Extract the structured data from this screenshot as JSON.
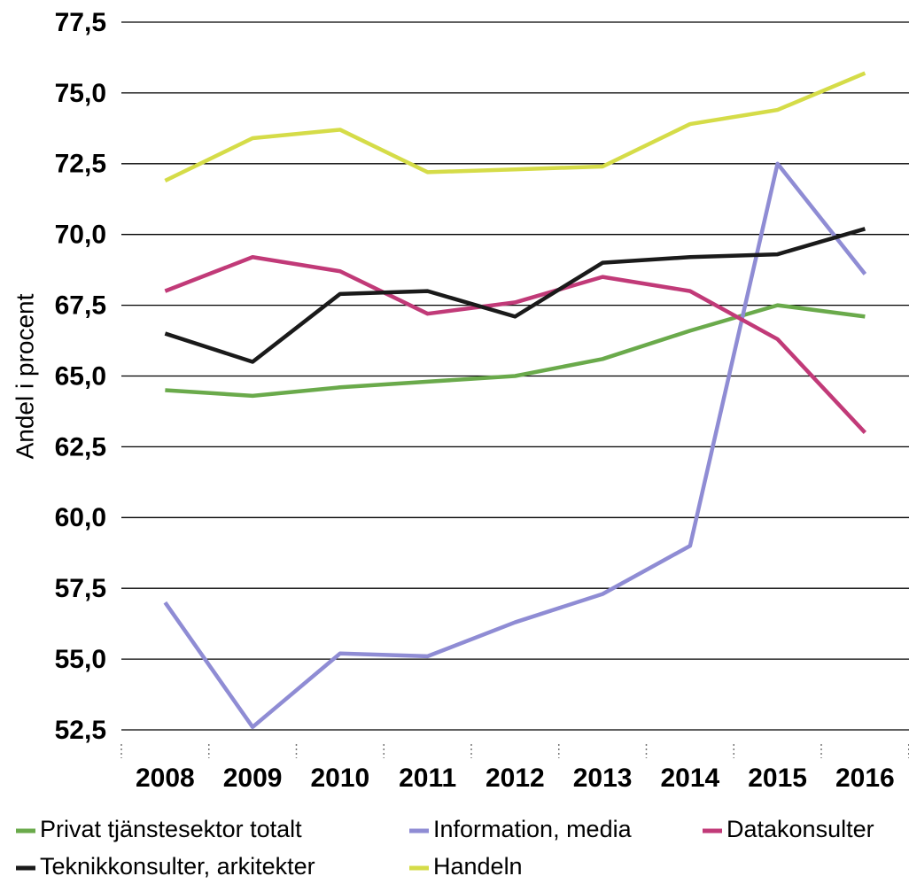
{
  "chart_data": {
    "type": "line",
    "y_label": "Andel i procent",
    "categories": [
      "2008",
      "2009",
      "2010",
      "2011",
      "2012",
      "2013",
      "2014",
      "2015",
      "2016"
    ],
    "series": [
      {
        "name": "Privat tjänstesektor totalt",
        "color": "#6aaa4b",
        "values": [
          64.5,
          64.3,
          64.6,
          64.8,
          65.0,
          65.6,
          66.6,
          67.5,
          67.1
        ]
      },
      {
        "name": "Information, media",
        "color": "#8f8cd4",
        "values": [
          57.0,
          52.6,
          55.2,
          55.1,
          56.3,
          57.3,
          59.0,
          72.5,
          68.6
        ]
      },
      {
        "name": "Datakonsulter",
        "color": "#c13a78",
        "values": [
          68.0,
          69.2,
          68.7,
          67.2,
          67.6,
          68.5,
          68.0,
          66.3,
          63.0
        ]
      },
      {
        "name": "Teknikkonsulter, arkitekter",
        "color": "#1a1a1a",
        "values": [
          66.5,
          65.5,
          67.9,
          68.0,
          67.1,
          69.0,
          69.2,
          69.3,
          70.2
        ]
      },
      {
        "name": "Handeln",
        "color": "#d5dc48",
        "values": [
          71.9,
          73.4,
          73.7,
          72.2,
          72.3,
          72.4,
          73.9,
          74.4,
          75.7
        ]
      }
    ],
    "ylim": [
      52.5,
      77.5
    ],
    "yticks": [
      {
        "value": 52.5,
        "label": "52,5"
      },
      {
        "value": 55,
        "label": "55,0"
      },
      {
        "value": 57.5,
        "label": "57,5"
      },
      {
        "value": 60,
        "label": "60,0"
      },
      {
        "value": 62.5,
        "label": "62,5"
      },
      {
        "value": 65,
        "label": "65,0"
      },
      {
        "value": 67.5,
        "label": "67,5"
      },
      {
        "value": 70,
        "label": "70,0"
      },
      {
        "value": 72.5,
        "label": "72,5"
      },
      {
        "value": 75,
        "label": "75,0"
      },
      {
        "value": 77.5,
        "label": "77,5"
      }
    ],
    "grid": true
  }
}
